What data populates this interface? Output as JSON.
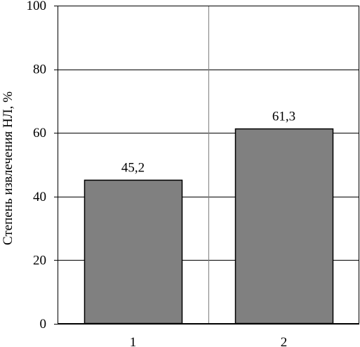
{
  "chart_data": {
    "type": "bar",
    "title": "",
    "xlabel": "",
    "ylabel": "Степень извлечения НЛ, %",
    "categories": [
      "1",
      "2"
    ],
    "values": [
      45.2,
      61.3
    ],
    "data_labels": [
      "45,2",
      "61,3"
    ],
    "ylim": [
      0,
      100
    ],
    "yticks": [
      0,
      20,
      40,
      60,
      80,
      100
    ],
    "grid": true,
    "bar_color": "#808080",
    "legend": "none"
  }
}
